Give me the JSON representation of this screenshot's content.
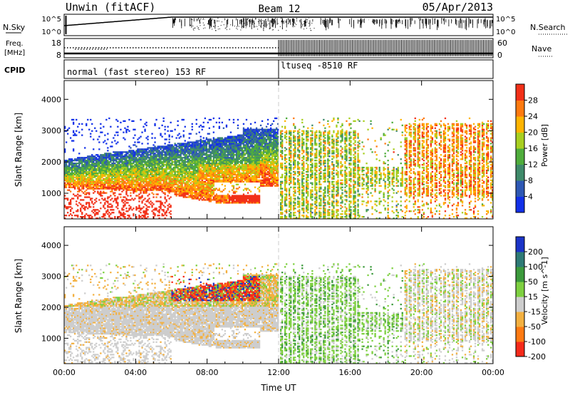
{
  "header": {
    "left_title": "Unwin (fitACF)",
    "center_title": "Beam 12",
    "right_title": "05/Apr/2013"
  },
  "panel_labels": {
    "nsky": "N.Sky",
    "nsky_tick_top": "10^5",
    "nsky_tick_bottom": "10^0",
    "nsearch": "N.Search",
    "nsearch_tick_top": "10^5",
    "nsearch_tick_bottom": "10^0",
    "freq_line1": "Freq.",
    "freq_line2": "[MHz]",
    "freq_tick_top": "18",
    "freq_tick_bottom": "8",
    "nave": "Nave",
    "nave_tick_top": "60",
    "nave_tick_bottom": "0",
    "cpid": "CPID",
    "cpid_left": "normal (fast stereo) 153 RF",
    "cpid_right": "ltuseq -8510 RF"
  },
  "chart_data": [
    {
      "type": "heatmap",
      "ylabel": "Slant Range [km]",
      "xlabel": "",
      "xlim": [
        0,
        24
      ],
      "ylim": [
        180,
        4600
      ],
      "yticks": [
        1000,
        2000,
        3000,
        4000
      ],
      "xticks": [
        "00:00",
        "04:00",
        "08:00",
        "12:00",
        "16:00",
        "20:00",
        "00:00"
      ],
      "colorbar": {
        "label": "Power [dB]",
        "range": [
          0,
          32
        ],
        "ticks": [
          "4",
          "8",
          "12",
          "16",
          "20",
          "24",
          "28"
        ],
        "colors": [
          "#1230e8",
          "#2e58b4",
          "#3f8a6a",
          "#4fad3c",
          "#a8cf20",
          "#ffb400",
          "#ff7a10",
          "#f23018"
        ]
      }
    },
    {
      "type": "heatmap",
      "ylabel": "Slant Range [km]",
      "xlabel": "Time UT",
      "xlim": [
        0,
        24
      ],
      "ylim": [
        180,
        4600
      ],
      "yticks": [
        1000,
        2000,
        3000,
        4000
      ],
      "xticks": [
        "00:00",
        "04:00",
        "08:00",
        "12:00",
        "16:00",
        "20:00",
        "00:00"
      ],
      "colorbar": {
        "label": "Velocity [m s^-1]",
        "ticks": [
          "200",
          "100",
          "50",
          "15",
          "-15",
          "-50",
          "-100",
          "-200"
        ],
        "colors": [
          "#1b34c8",
          "#2e7a76",
          "#3c9a3c",
          "#7ed040",
          "#cdcdcd",
          "#f3b040",
          "#ff7a12",
          "#f52a1a"
        ]
      }
    }
  ]
}
